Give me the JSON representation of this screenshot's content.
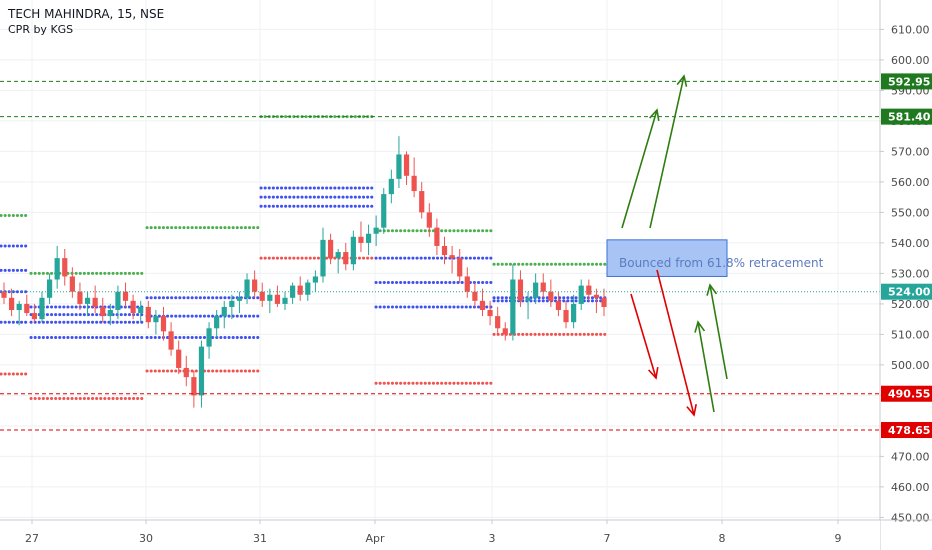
{
  "header": {
    "symbol_line": "TECH MAHINDRA, 15, NSE",
    "indicator": "CPR by KGS"
  },
  "colors": {
    "background": "#ffffff",
    "grid": "#eef0f3",
    "axis_text": "#4a4a4a",
    "candle_up": "#26a69a",
    "candle_down": "#ef5350",
    "cpr_green": "#4caf50",
    "cpr_blue": "#3f51f0",
    "cpr_red": "#ef5350",
    "level_green": "#1f7a1f",
    "level_red": "#e00000",
    "current_price": "#26a69a",
    "arrow_green": "#2e7d12",
    "arrow_red": "#e00000",
    "zone_fill": "#a8c4f5",
    "zone_stroke": "#3a6fd8"
  },
  "chart_data": {
    "type": "candlestick",
    "x_labels": [
      "27",
      "30",
      "31",
      "Apr",
      "3",
      "7",
      "8",
      "9"
    ],
    "y_ticks": [
      450,
      460,
      470,
      480,
      490,
      500,
      510,
      520,
      530,
      540,
      550,
      560,
      570,
      580,
      590,
      600,
      610
    ],
    "y_tick_labels": [
      "450.00",
      "460.00",
      "470.00",
      "480.00",
      "490.00",
      "500.00",
      "510.00",
      "520.00",
      "530.00",
      "540.00",
      "550.00",
      "560.00",
      "570.00",
      "580.00",
      "590.00",
      "600.00",
      "610.00"
    ],
    "ylim": [
      445,
      614
    ],
    "price_levels": [
      {
        "label": "592.95",
        "value": 592.95,
        "color": "green"
      },
      {
        "label": "581.40",
        "value": 581.4,
        "color": "green"
      },
      {
        "label": "524.00",
        "value": 524.0,
        "color": "teal"
      },
      {
        "label": "490.55",
        "value": 490.55,
        "color": "red"
      },
      {
        "label": "478.65",
        "value": 478.65,
        "color": "red"
      }
    ],
    "annotation": {
      "text": "Bounced from 61.8% retracement",
      "zone_low": 529,
      "zone_high": 541
    },
    "cpr_sessions": [
      {
        "session": 0,
        "levels": [
          {
            "v": 549,
            "c": "green"
          },
          {
            "v": 539,
            "c": "blue"
          },
          {
            "v": 531,
            "c": "blue"
          },
          {
            "v": 524,
            "c": "blue"
          },
          {
            "v": 514,
            "c": "blue"
          },
          {
            "v": 497,
            "c": "red"
          }
        ]
      },
      {
        "session": 1,
        "levels": [
          {
            "v": 530,
            "c": "green"
          },
          {
            "v": 519,
            "c": "blue"
          },
          {
            "v": 516.5,
            "c": "blue"
          },
          {
            "v": 514,
            "c": "blue"
          },
          {
            "v": 509,
            "c": "blue"
          },
          {
            "v": 489,
            "c": "red"
          }
        ]
      },
      {
        "session": 2,
        "levels": [
          {
            "v": 545,
            "c": "green"
          },
          {
            "v": 522,
            "c": "blue"
          },
          {
            "v": 516,
            "c": "blue"
          },
          {
            "v": 509,
            "c": "blue"
          },
          {
            "v": 498,
            "c": "red"
          }
        ]
      },
      {
        "session": 3,
        "levels": [
          {
            "v": 581.4,
            "c": "green"
          },
          {
            "v": 558,
            "c": "blue"
          },
          {
            "v": 555,
            "c": "blue"
          },
          {
            "v": 552,
            "c": "blue"
          },
          {
            "v": 535,
            "c": "red"
          }
        ]
      },
      {
        "session": 4,
        "levels": [
          {
            "v": 544,
            "c": "green"
          },
          {
            "v": 535,
            "c": "blue"
          },
          {
            "v": 527,
            "c": "blue"
          },
          {
            "v": 519,
            "c": "blue"
          },
          {
            "v": 494,
            "c": "red"
          }
        ]
      },
      {
        "session": 5,
        "levels": [
          {
            "v": 533,
            "c": "green"
          },
          {
            "v": 522,
            "c": "blue"
          },
          {
            "v": 521,
            "c": "blue"
          },
          {
            "v": 510,
            "c": "red"
          }
        ]
      }
    ],
    "candles": [
      [
        524,
        527,
        520,
        522
      ],
      [
        522,
        525,
        516,
        518
      ],
      [
        518,
        521,
        513,
        520
      ],
      [
        520,
        523,
        516,
        517
      ],
      [
        517,
        520,
        514,
        515
      ],
      [
        515,
        524,
        514,
        522
      ],
      [
        522,
        530,
        520,
        528
      ],
      [
        528,
        539,
        525,
        535
      ],
      [
        535,
        538,
        526,
        529
      ],
      [
        529,
        532,
        522,
        524
      ],
      [
        524,
        527,
        518,
        520
      ],
      [
        520,
        524,
        516,
        522
      ],
      [
        522,
        526,
        517,
        519
      ],
      [
        519,
        522,
        514,
        516
      ],
      [
        516,
        520,
        513,
        518
      ],
      [
        518,
        526,
        515,
        524
      ],
      [
        524,
        527,
        519,
        521
      ],
      [
        521,
        523,
        515,
        517
      ],
      [
        517,
        521,
        514,
        519
      ],
      [
        519,
        521,
        512,
        514
      ],
      [
        514,
        518,
        510,
        516
      ],
      [
        516,
        519,
        508,
        511
      ],
      [
        511,
        514,
        503,
        505
      ],
      [
        505,
        508,
        497,
        499
      ],
      [
        499,
        503,
        493,
        496
      ],
      [
        496,
        498,
        486,
        490
      ],
      [
        490,
        508,
        486,
        506
      ],
      [
        506,
        514,
        502,
        512
      ],
      [
        512,
        518,
        509,
        516
      ],
      [
        516,
        521,
        512,
        519
      ],
      [
        519,
        523,
        515,
        521
      ],
      [
        521,
        524,
        517,
        522
      ],
      [
        522,
        530,
        520,
        528
      ],
      [
        528,
        531,
        522,
        524
      ],
      [
        524,
        527,
        519,
        521
      ],
      [
        521,
        525,
        517,
        523
      ],
      [
        523,
        526,
        519,
        520
      ],
      [
        520,
        524,
        518,
        522
      ],
      [
        522,
        527,
        520,
        526
      ],
      [
        526,
        529,
        521,
        523
      ],
      [
        523,
        528,
        521,
        527
      ],
      [
        527,
        531,
        524,
        529
      ],
      [
        529,
        545,
        527,
        541
      ],
      [
        541,
        543,
        533,
        535
      ],
      [
        535,
        538,
        530,
        537
      ],
      [
        537,
        540,
        531,
        533
      ],
      [
        533,
        544,
        531,
        542
      ],
      [
        542,
        547,
        537,
        540
      ],
      [
        540,
        546,
        536,
        543
      ],
      [
        543,
        549,
        539,
        545
      ],
      [
        545,
        558,
        543,
        556
      ],
      [
        556,
        564,
        553,
        561
      ],
      [
        561,
        575,
        558,
        569
      ],
      [
        569,
        570,
        559,
        562
      ],
      [
        562,
        568,
        555,
        557
      ],
      [
        557,
        560,
        548,
        550
      ],
      [
        550,
        553,
        542,
        545
      ],
      [
        545,
        548,
        536,
        539
      ],
      [
        539,
        542,
        533,
        536
      ],
      [
        536,
        539,
        530,
        535
      ],
      [
        535,
        538,
        527,
        529
      ],
      [
        529,
        532,
        522,
        524
      ],
      [
        524,
        527,
        519,
        521
      ],
      [
        521,
        525,
        516,
        518
      ],
      [
        518,
        521,
        513,
        516
      ],
      [
        516,
        519,
        510,
        512
      ],
      [
        512,
        514,
        508,
        510
      ],
      [
        510,
        533,
        508,
        528
      ],
      [
        528,
        531,
        519,
        521
      ],
      [
        521,
        524,
        515,
        522
      ],
      [
        522,
        530,
        520,
        527
      ],
      [
        527,
        530,
        522,
        524
      ],
      [
        524,
        528,
        519,
        521
      ],
      [
        521,
        524,
        516,
        518
      ],
      [
        518,
        521,
        512,
        514
      ],
      [
        514,
        523,
        512,
        520
      ],
      [
        520,
        528,
        518,
        526
      ],
      [
        526,
        528,
        521,
        523
      ],
      [
        523,
        525,
        517,
        522
      ],
      [
        522,
        525,
        516,
        519
      ]
    ]
  }
}
